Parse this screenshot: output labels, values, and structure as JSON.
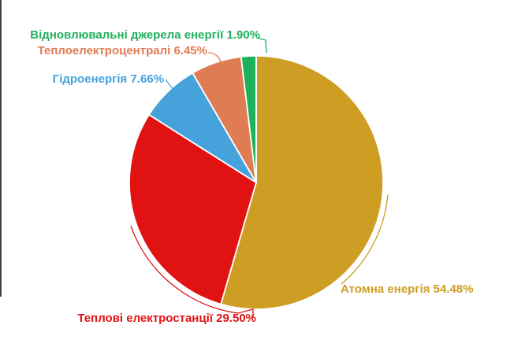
{
  "chart_data": {
    "type": "pie",
    "title": "",
    "unit": "%",
    "direction": "clockwise",
    "start_angle_deg": 0,
    "legend_position": "external-labels",
    "background_color": "#ffffff",
    "slice_border_color": "#ffffff",
    "slices": [
      {
        "name": "Атомна енергія",
        "value": 54.48,
        "label": "Атомна енергія 54.48%",
        "color": "#CE9D24"
      },
      {
        "name": "Теплові електростанції",
        "value": 29.5,
        "label": "Теплові електростанції 29.50%",
        "color": "#E11212"
      },
      {
        "name": "Гідроенергія",
        "value": 7.66,
        "label": "Гідроенергія 7.66%",
        "color": "#45A2DB"
      },
      {
        "name": "Теплоелектроцентралі",
        "value": 6.45,
        "label": "Теплоелектроцентралі 6.45%",
        "color": "#E07C54"
      },
      {
        "name": "Відновлювальні джерела енергії",
        "value": 1.9,
        "label": "Відновлювальні джерела енергії 1.90%",
        "color": "#1EB15C"
      }
    ]
  }
}
